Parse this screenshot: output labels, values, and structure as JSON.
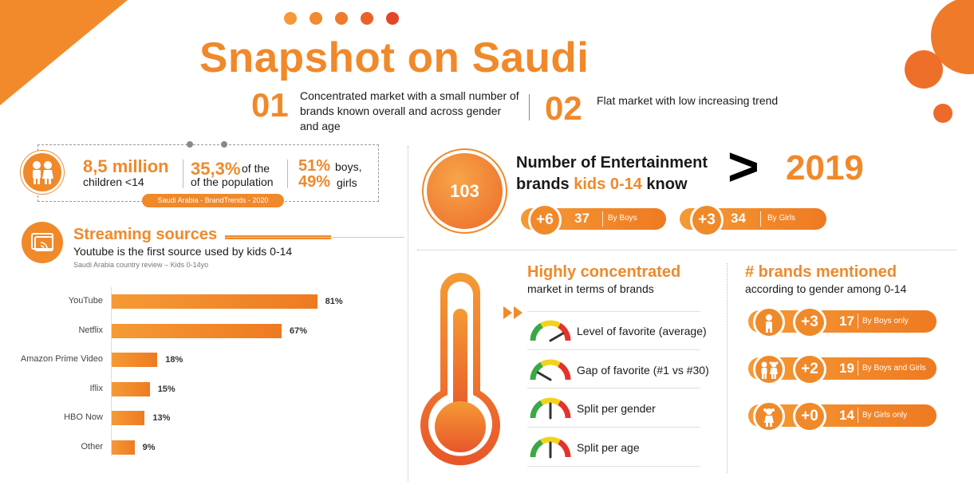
{
  "title": "Snapshot on Saudi",
  "points": [
    {
      "num": "01",
      "text": "Concentrated market with a small number of brands known overall and across gender and age"
    },
    {
      "num": "02",
      "text": "Flat market with low increasing trend"
    }
  ],
  "demographics": {
    "children_value": "8,5 million",
    "children_label": "children <14",
    "share_value": "35,3%",
    "share_label_1": "of the",
    "share_label_2": "of the population",
    "boys_value": "51%",
    "boys_label": "boys,",
    "girls_value": "49%",
    "girls_label": "girls",
    "source_tag": "Saudi Arabia - BrandTrends - 2020"
  },
  "streaming": {
    "heading": "Streaming sources",
    "subheading": "Youtube is the first source used by kids 0-14",
    "note": "Saudi Arabia country review – Kids 0-14yo"
  },
  "chart_data": {
    "type": "bar",
    "orientation": "horizontal",
    "categories": [
      "YouTube",
      "Netflix",
      "Amazon Prime Video",
      "Iflix",
      "HBO Now",
      "Other"
    ],
    "values": [
      81,
      67,
      18,
      15,
      13,
      9
    ],
    "value_labels": [
      "81%",
      "67%",
      "18%",
      "15%",
      "13%",
      "9%"
    ],
    "title": "",
    "xlabel": "",
    "ylabel": "",
    "xlim": [
      0,
      100
    ],
    "grid": false,
    "bar_color": "#f0892a"
  },
  "brands": {
    "count": "103",
    "heading_1": "Number of Entertainment",
    "heading_2a": "brands",
    "heading_2b": "kids 0-14",
    "heading_2c": "know",
    "comparison_symbol": ">",
    "year": "2019",
    "boys": {
      "delta": "+6",
      "value": "37",
      "label": "By Boys"
    },
    "girls": {
      "delta": "+3",
      "value": "34",
      "label": "By Girls"
    }
  },
  "concentration": {
    "heading": "Highly concentrated",
    "subheading": "market in terms of brands",
    "arrow_icon": "double-arrow-right-icon",
    "gauges": [
      {
        "label": "Level of favorite (average)",
        "level": "high"
      },
      {
        "label": "Gap of favorite (#1 vs #30)",
        "level": "low"
      },
      {
        "label": "Split per gender",
        "level": "medium"
      },
      {
        "label": "Split per age",
        "level": "medium"
      }
    ]
  },
  "mentioned": {
    "heading": "# brands mentioned",
    "subheading": "according to gender among 0-14",
    "rows": [
      {
        "icon": "boy-icon",
        "delta": "+3",
        "value": "17",
        "label": "By Boys only"
      },
      {
        "icon": "boy-girl-icon",
        "delta": "+2",
        "value": "19",
        "label": "By Boys and Girls"
      },
      {
        "icon": "girl-icon",
        "delta": "+0",
        "value": "14",
        "label": "By Girls only"
      }
    ]
  },
  "colors": {
    "accent": "#f0892a",
    "accent_dark": "#e8502a",
    "dots": [
      "#f59a35",
      "#f38a30",
      "#ef7a2c",
      "#ea6229",
      "#e44428"
    ]
  }
}
